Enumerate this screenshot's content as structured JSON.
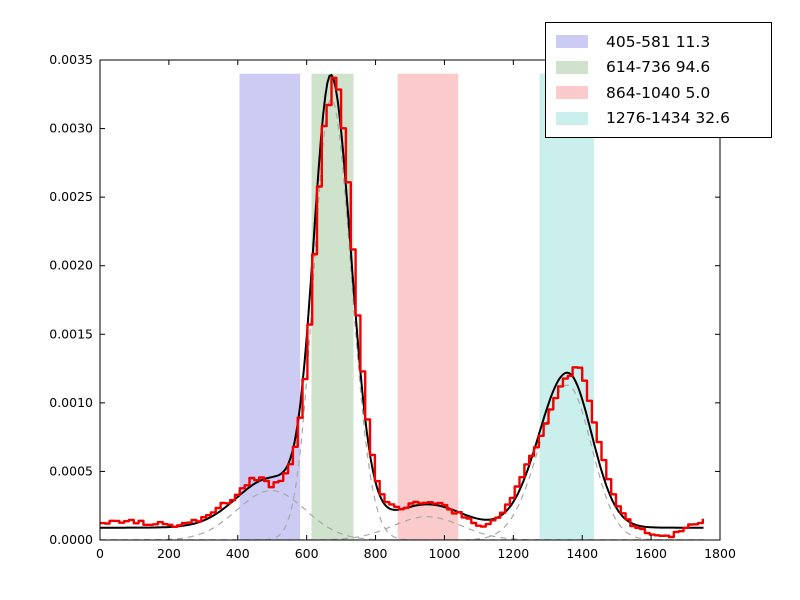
{
  "figure": {
    "background": "#ffffff"
  },
  "axes": {
    "x_tick_labels": [
      "0",
      "200",
      "400",
      "600",
      "800",
      "1000",
      "1200",
      "1400",
      "1600",
      "1800"
    ],
    "y_tick_labels": [
      "0.0000",
      "0.0005",
      "0.0010",
      "0.0015",
      "0.0020",
      "0.0025",
      "0.0030",
      "0.0035"
    ]
  },
  "legend": {
    "entries": [
      {
        "label": "405-581 11.3",
        "color": "#cbcbf3"
      },
      {
        "label": "614-736 94.6",
        "color": "#cfe2cb"
      },
      {
        "label": "864-1040 5.0",
        "color": "#fbcaca"
      },
      {
        "label": "1276-1434 32.6",
        "color": "#caefec"
      }
    ]
  },
  "chart_data": {
    "type": "line",
    "title": "",
    "xlabel": "",
    "ylabel": "",
    "xlim": [
      0,
      1800
    ],
    "ylim": [
      0,
      0.0035
    ],
    "xticks": [
      0,
      200,
      400,
      600,
      800,
      1000,
      1200,
      1400,
      1600,
      1800
    ],
    "yticks": [
      0.0,
      0.0005,
      0.001,
      0.0015,
      0.002,
      0.0025,
      0.003,
      0.0035
    ],
    "grid": false,
    "legend_position": "upper-right",
    "bands": [
      {
        "from": 405,
        "to": 581,
        "area": 11.3,
        "label": "405-581 11.3",
        "color": "#cbcbf3"
      },
      {
        "from": 614,
        "to": 736,
        "area": 94.6,
        "label": "614-736 94.6",
        "color": "#cfe2cb"
      },
      {
        "from": 864,
        "to": 1040,
        "area": 5.0,
        "label": "864-1040 5.0",
        "color": "#fbcaca"
      },
      {
        "from": 1276,
        "to": 1434,
        "area": 32.6,
        "label": "1276-1434 32.6",
        "color": "#caefec"
      }
    ],
    "band_top": 0.0034,
    "baseline": 9e-05,
    "components": [
      {
        "center": 497,
        "amplitude": 0.00036,
        "sigma_left": 100,
        "sigma_right": 100
      },
      {
        "center": 671,
        "amplitude": 0.00322,
        "sigma_left": 50,
        "sigma_right": 58
      },
      {
        "center": 950,
        "amplitude": 0.00017,
        "sigma_left": 100,
        "sigma_right": 100
      },
      {
        "center": 1357,
        "amplitude": 0.00113,
        "sigma_left": 82,
        "sigma_right": 70
      }
    ],
    "x_start": 0,
    "x_end": 1752,
    "data_bin": 14,
    "data_deviation": [
      [
        0,
        5e-05
      ],
      [
        60,
        4e-05
      ],
      [
        140,
        3e-05
      ],
      [
        200,
        1e-05
      ],
      [
        260,
        0.0
      ],
      [
        330,
        5e-05
      ],
      [
        380,
        3e-05
      ],
      [
        430,
        6e-05
      ],
      [
        465,
        2e-05
      ],
      [
        490,
        -7e-05
      ],
      [
        515,
        -3e-05
      ],
      [
        545,
        2e-05
      ],
      [
        580,
        3e-05
      ],
      [
        620,
        6e-05
      ],
      [
        645,
        4e-05
      ],
      [
        658,
        -0.00014
      ],
      [
        668,
        -2e-05
      ],
      [
        685,
        4e-05
      ],
      [
        710,
        3e-05
      ],
      [
        760,
        1e-05
      ],
      [
        820,
        -1e-05
      ],
      [
        870,
        1e-05
      ],
      [
        920,
        2e-05
      ],
      [
        960,
        3e-05
      ],
      [
        1000,
        -1e-05
      ],
      [
        1040,
        -2e-05
      ],
      [
        1090,
        -3e-05
      ],
      [
        1130,
        -3e-05
      ],
      [
        1170,
        3e-05
      ],
      [
        1205,
        0.0001
      ],
      [
        1240,
        8e-05
      ],
      [
        1285,
        -2e-05
      ],
      [
        1320,
        -6e-05
      ],
      [
        1355,
        -5e-05
      ],
      [
        1375,
        6e-05
      ],
      [
        1395,
        0.00014
      ],
      [
        1420,
        0.0001
      ],
      [
        1450,
        8e-05
      ],
      [
        1485,
        3e-05
      ],
      [
        1530,
        -2e-05
      ],
      [
        1575,
        -4e-05
      ],
      [
        1615,
        -5e-05
      ],
      [
        1655,
        -4e-05
      ],
      [
        1695,
        0.0
      ],
      [
        1725,
        4e-05
      ],
      [
        1752,
        6e-05
      ]
    ],
    "noise": {
      "seed": 123457,
      "scale": 2e-05,
      "persistence": 0.55,
      "clamp": 5e-05
    },
    "series_styles": {
      "raw_data": {
        "color": "#f20000",
        "width": 2.4,
        "dash": null
      },
      "total_fit": {
        "color": "#000000",
        "width": 2.0,
        "dash": null
      },
      "component": {
        "color": "#a8a8a8",
        "width": 1.2,
        "dash": "6 5"
      }
    }
  }
}
